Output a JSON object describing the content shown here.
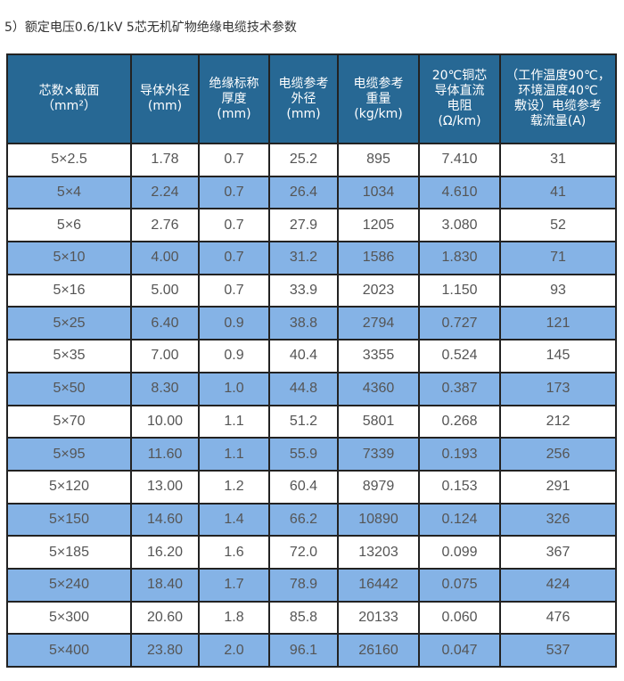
{
  "title": "5）额定电压0.6/1kV  5芯无机矿物绝缘电缆技术参数",
  "table": {
    "headers": [
      [
        "芯数×截面",
        "（mm²）"
      ],
      [
        "导体外径",
        "(mm)"
      ],
      [
        "绝缘标称",
        "厚度",
        "(mm)"
      ],
      [
        "电缆参考",
        "外径",
        "(mm)"
      ],
      [
        "电缆参考",
        "重量",
        "(kg/km)"
      ],
      [
        "20℃铜芯",
        "导体直流",
        "电阻",
        "(Ω/km)"
      ],
      [
        "（工作温度90℃，",
        "环境温度40℃",
        "敷设）电缆参考",
        "载流量(A)"
      ]
    ],
    "rows": [
      [
        "5×2.5",
        "1.78",
        "0.7",
        "25.2",
        "895",
        "7.410",
        "31"
      ],
      [
        "5×4",
        "2.24",
        "0.7",
        "26.4",
        "1034",
        "4.610",
        "41"
      ],
      [
        "5×6",
        "2.76",
        "0.7",
        "27.9",
        "1205",
        "3.080",
        "52"
      ],
      [
        "5×10",
        "4.00",
        "0.7",
        "31.2",
        "1586",
        "1.830",
        "71"
      ],
      [
        "5×16",
        "5.00",
        "0.7",
        "33.9",
        "2023",
        "1.150",
        "93"
      ],
      [
        "5×25",
        "6.40",
        "0.9",
        "38.8",
        "2794",
        "0.727",
        "121"
      ],
      [
        "5×35",
        "7.00",
        "0.9",
        "40.4",
        "3355",
        "0.524",
        "145"
      ],
      [
        "5×50",
        "8.30",
        "1.0",
        "44.8",
        "4360",
        "0.387",
        "173"
      ],
      [
        "5×70",
        "10.00",
        "1.1",
        "51.2",
        "5801",
        "0.268",
        "212"
      ],
      [
        "5×95",
        "11.60",
        "1.1",
        "55.9",
        "7339",
        "0.193",
        "256"
      ],
      [
        "5×120",
        "13.00",
        "1.2",
        "60.4",
        "8979",
        "0.153",
        "291"
      ],
      [
        "5×150",
        "14.60",
        "1.4",
        "66.2",
        "10890",
        "0.124",
        "326"
      ],
      [
        "5×185",
        "16.20",
        "1.6",
        "72.0",
        "13203",
        "0.099",
        "367"
      ],
      [
        "5×240",
        "18.40",
        "1.7",
        "78.9",
        "16442",
        "0.075",
        "424"
      ],
      [
        "5×300",
        "20.60",
        "1.8",
        "85.8",
        "20133",
        "0.060",
        "476"
      ],
      [
        "5×400",
        "23.80",
        "2.0",
        "96.1",
        "26160",
        "0.047",
        "537"
      ]
    ]
  },
  "colors": {
    "header": "#276894",
    "alt_row": "#85b3e6",
    "row": "#ffffff"
  }
}
